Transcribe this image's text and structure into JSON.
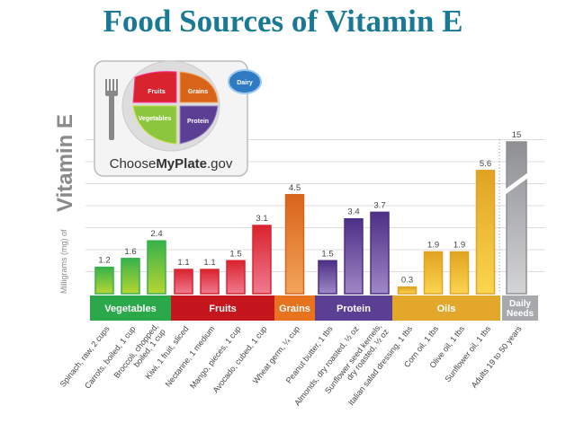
{
  "title": "Food Sources of Vitamin E",
  "logo": {
    "text_prefix": "Choose",
    "text_bold": "MyPlate",
    "text_suffix": ".gov",
    "sections": [
      "Fruits",
      "Grains",
      "Vegetables",
      "Protein",
      "Dairy"
    ]
  },
  "chart_data": {
    "type": "bar",
    "title": "Food Sources of Vitamin E",
    "ylabel_small": "Milligrams (mg) of",
    "ylabel_big": "Vitamin E",
    "grid": true,
    "groups": [
      {
        "name": "Vegetables",
        "color": "#2aa84a",
        "bar_top": "#36b24a",
        "bar_bottom": "#b9d531",
        "items": [
          {
            "label": "Spinach, raw, 2 cups",
            "value": 1.2
          },
          {
            "label": "Carrots, boiled, 1 cup",
            "value": 1.6
          },
          {
            "label": "Broccoli, chopped, boiled, 1 cup",
            "value": 2.4
          }
        ]
      },
      {
        "name": "Fruits",
        "color": "#c4161c",
        "bar_top": "#d9232e",
        "bar_bottom": "#f07a90",
        "items": [
          {
            "label": "Kiwi, 1 fruit, sliced",
            "value": 1.1
          },
          {
            "label": "Nectarine, 1 medium",
            "value": 1.1
          },
          {
            "label": "Mango, pieces, 1 cup",
            "value": 1.5
          },
          {
            "label": "Avocado, cubed, 1 cup",
            "value": 3.1
          }
        ]
      },
      {
        "name": "Grains",
        "color": "#e8731f",
        "bar_top": "#d8641a",
        "bar_bottom": "#f2a55a",
        "items": [
          {
            "label": "Wheat germ, ¼ cup",
            "value": 4.5
          }
        ]
      },
      {
        "name": "Protein",
        "color": "#5b3f95",
        "bar_top": "#4d2f86",
        "bar_bottom": "#9f88c6",
        "items": [
          {
            "label": "Peanut butter, 1 tbs",
            "value": 1.5
          },
          {
            "label": "Almonds, dry roasted, ½ oz",
            "value": 3.4
          },
          {
            "label": "Sunflower seed kernels, dry roasted, ½ oz",
            "value": 3.7
          }
        ]
      },
      {
        "name": "Oils",
        "color": "#e3a82b",
        "bar_top": "#e0a322",
        "bar_bottom": "#fbd650",
        "items": [
          {
            "label": "Italian salad dressing, 1 tbs",
            "value": 0.3
          },
          {
            "label": "Corn oil, 1 tbs",
            "value": 1.9
          },
          {
            "label": "Olive oil, 1 tbs",
            "value": 1.9
          },
          {
            "label": "Sunflower oil, 1 tbs",
            "value": 5.6
          }
        ]
      },
      {
        "name": "Daily Needs",
        "color": "#a7a9ac",
        "bar_top": "#8e8f92",
        "bar_bottom": "#d3d4d6",
        "items": [
          {
            "label": "Adults 19 to 50 years",
            "value": 15,
            "broken": true
          }
        ]
      }
    ]
  }
}
